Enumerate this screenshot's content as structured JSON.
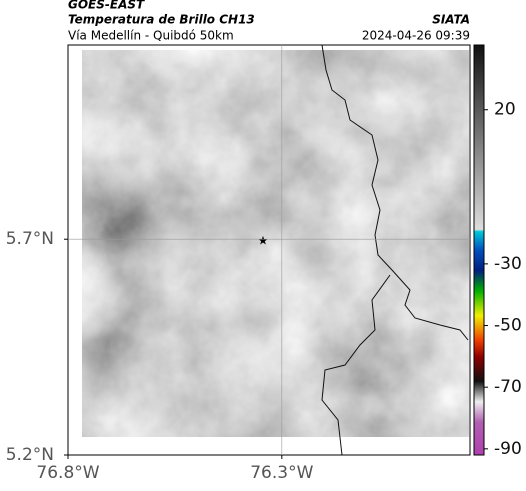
{
  "header": {
    "title": "GOES-EAST",
    "subtitle": "Temperatura de Brillo CH13",
    "region": "Vía Medellín - Quibdó 50km",
    "source": "SIATA",
    "datetime": "2024-04-26 09:39"
  },
  "map": {
    "xlim": [
      -76.8,
      -75.86
    ],
    "ylim": [
      5.2,
      6.15
    ],
    "xticks": [
      {
        "value": -76.8,
        "label": "76.8°W"
      },
      {
        "value": -76.3,
        "label": "76.3°W"
      }
    ],
    "yticks": [
      {
        "value": 5.2,
        "label": "5.2°N"
      },
      {
        "value": 5.7,
        "label": "5.7°N"
      }
    ],
    "grid": true
  },
  "colorbar": {
    "lim": [
      -92,
      41
    ],
    "ticks": [
      20,
      -30,
      -50,
      -70,
      -90
    ]
  }
}
